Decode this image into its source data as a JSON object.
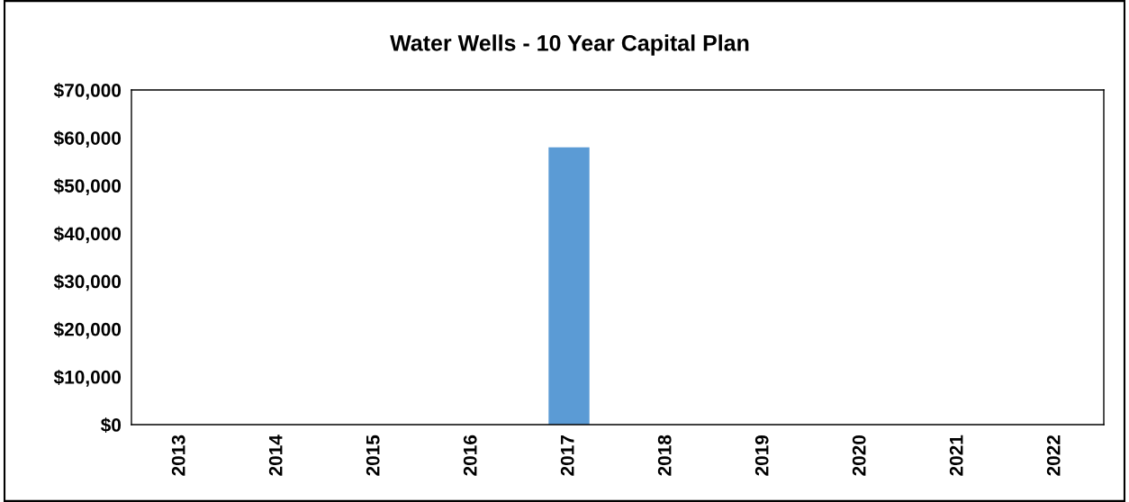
{
  "chart_data": {
    "type": "bar",
    "title": "Water Wells - 10 Year Capital Plan",
    "categories": [
      "2013",
      "2014",
      "2015",
      "2016",
      "2017",
      "2018",
      "2019",
      "2020",
      "2021",
      "2022"
    ],
    "values": [
      0,
      0,
      0,
      0,
      58000,
      0,
      0,
      0,
      0,
      0
    ],
    "color": "#5b9bd5",
    "ylim": [
      0,
      70000
    ],
    "yticks": [
      {
        "value": 0,
        "label": "$0"
      },
      {
        "value": 10000,
        "label": "$10,000"
      },
      {
        "value": 20000,
        "label": "$20,000"
      },
      {
        "value": 30000,
        "label": "$30,000"
      },
      {
        "value": 40000,
        "label": "$40,000"
      },
      {
        "value": 50000,
        "label": "$50,000"
      },
      {
        "value": 60000,
        "label": "$60,000"
      },
      {
        "value": 70000,
        "label": "$70,000"
      }
    ],
    "grid": false,
    "legend": false
  }
}
